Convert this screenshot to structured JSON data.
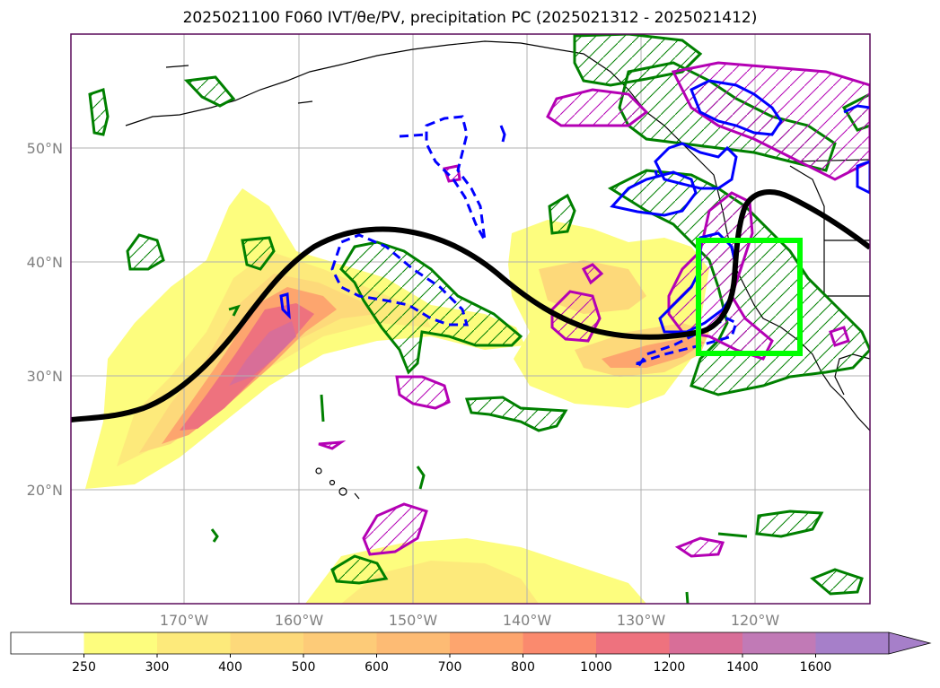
{
  "title": "2025021100 F060 IVT/θe/PV, precipitation PC (2025021312 - 2025021412)",
  "axes": {
    "lat_labels": [
      "50°N",
      "40°N",
      "30°N",
      "20°N"
    ],
    "lon_labels": [
      "170°W",
      "160°W",
      "150°W",
      "140°W",
      "130°W",
      "120°W"
    ]
  },
  "colorbar": {
    "tick_labels": [
      "250",
      "300",
      "400",
      "500",
      "600",
      "700",
      "800",
      "1000",
      "1200",
      "1400",
      "1600"
    ],
    "colors": [
      "#ffffff",
      "#fdfd7e",
      "#fdea7b",
      "#fdd97a",
      "#fdcb78",
      "#fdbb74",
      "#fda56e",
      "#fa8a6e",
      "#ee727e",
      "#d86e98",
      "#c17ab6",
      "#a67fc9"
    ],
    "extend": "max"
  },
  "legend_colors": {
    "theta_e_contour": "#0000ff",
    "pv_contour": "#008000",
    "precip_contour": "#b400b4",
    "jet_line": "#000000",
    "target_box": "#00ff00"
  }
}
